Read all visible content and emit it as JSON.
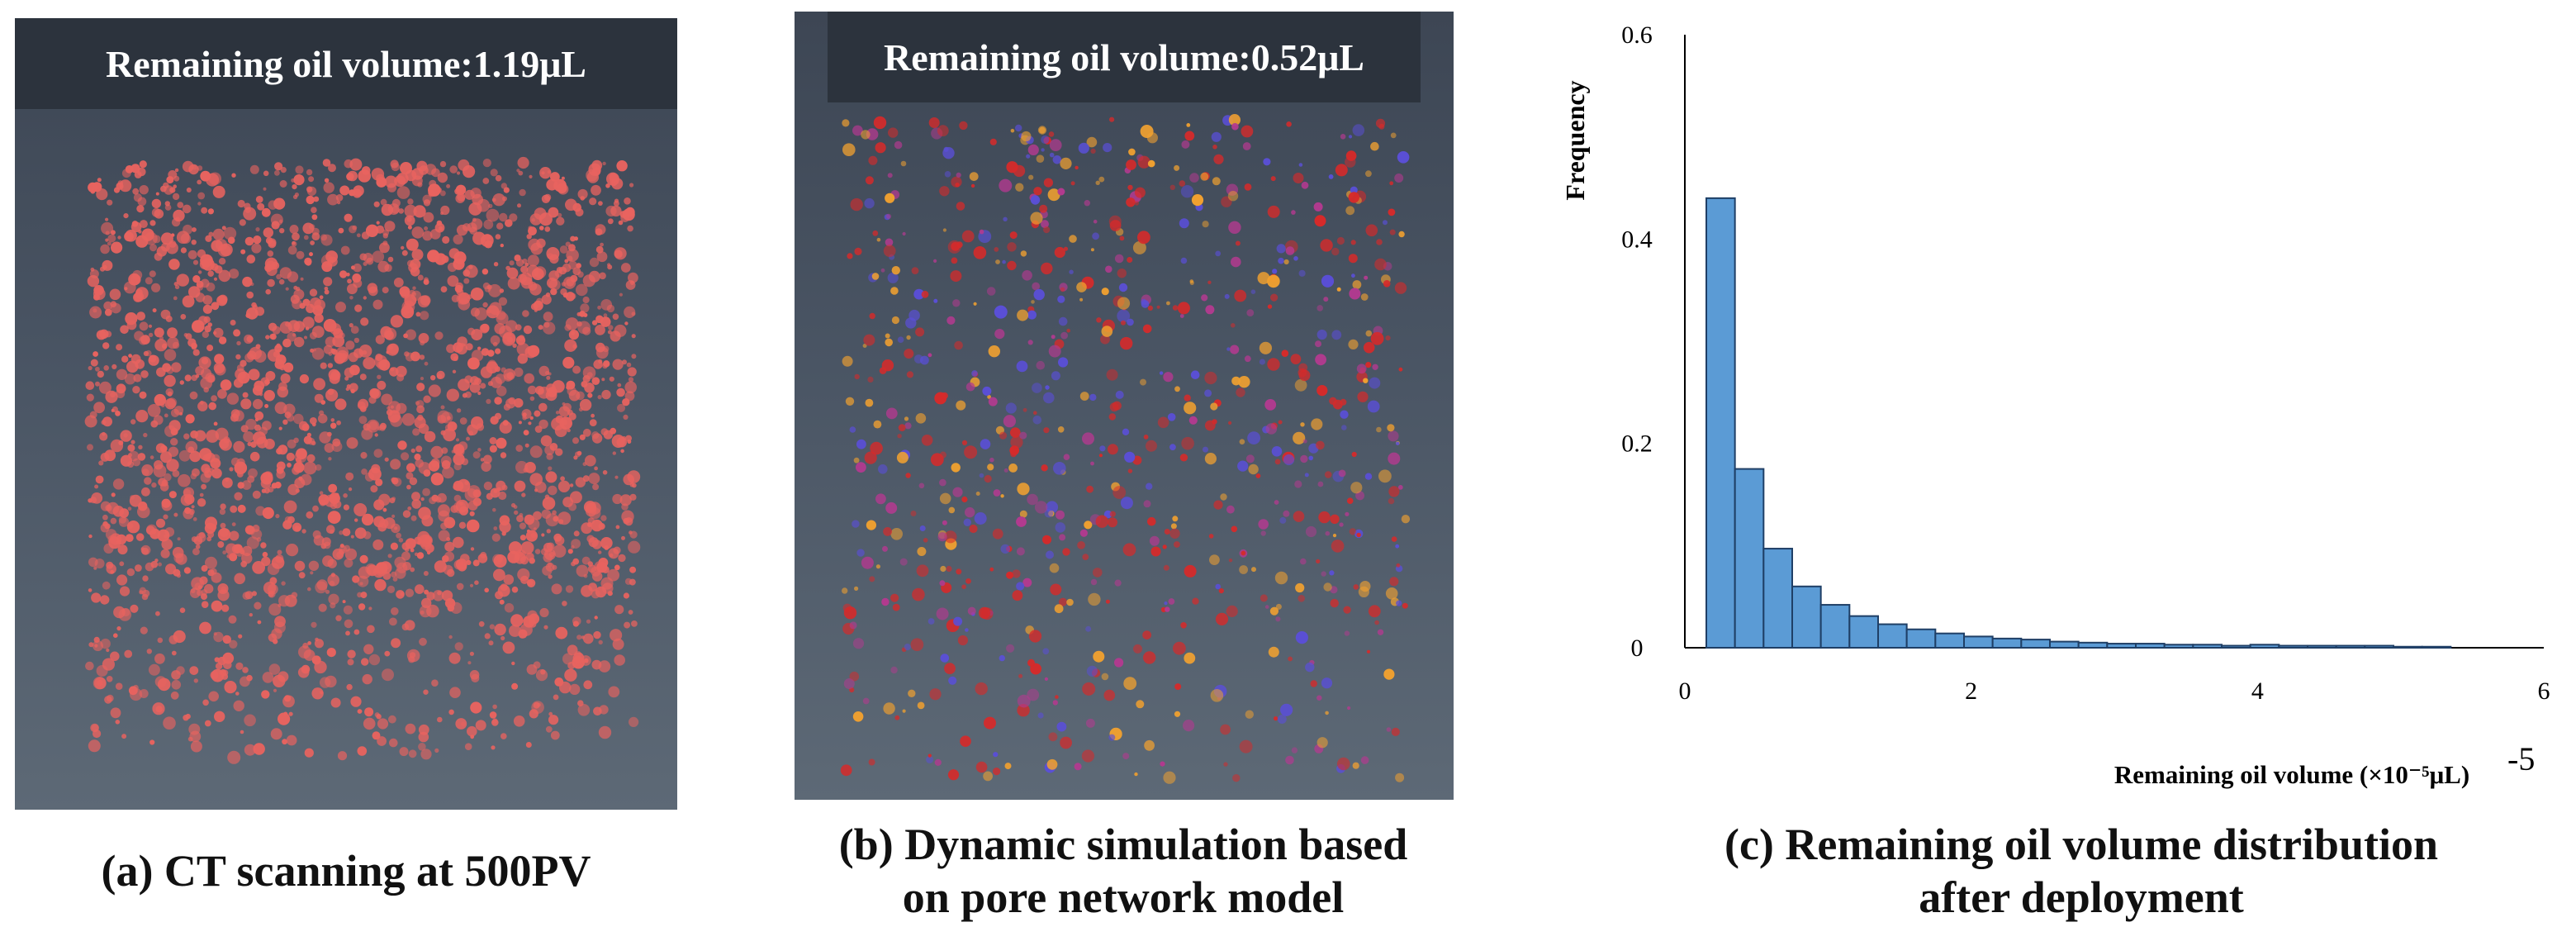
{
  "panel_a": {
    "header": "Remaining oil volume:1.19μL",
    "caption": "(a) CT scanning at 500PV",
    "image_desc": "ct-scan-oil-render"
  },
  "panel_b": {
    "header": "Remaining oil volume:0.52μL",
    "caption_line1": "(b) Dynamic simulation based",
    "caption_line2": "on pore network model",
    "image_desc": "pore-network-simulation-render"
  },
  "panel_c": {
    "caption_line1": "(c) Remaining oil volume distribution",
    "caption_line2": "after deployment"
  },
  "colors": {
    "bar_fill": "#5b9bd5",
    "bar_stroke": "#1f3f66",
    "oil_ct": "#e8635f",
    "oil_red": "#d62a2a",
    "oil_orange": "#f0a030",
    "oil_blue": "#5a4fd6"
  },
  "chart_data": {
    "type": "bar",
    "title": "",
    "xlabel": "Remaining oil volume (×10⁻⁵μL)",
    "exponent_label": "-5",
    "ylabel": "Frequency",
    "xlim": [
      0,
      6
    ],
    "ylim": [
      0,
      0.6
    ],
    "x_ticks": [
      "0",
      "2",
      "4",
      "6"
    ],
    "y_ticks": [
      "0",
      "0.2",
      "0.4",
      "0.6"
    ],
    "bin_width": 0.2,
    "bin_starts": [
      0.15,
      0.35,
      0.55,
      0.75,
      0.95,
      1.15,
      1.35,
      1.55,
      1.75,
      1.95,
      2.15,
      2.35,
      2.55,
      2.75,
      2.95,
      3.15,
      3.35,
      3.55,
      3.75,
      3.95,
      4.15,
      4.35,
      4.55,
      4.75,
      4.95,
      5.15
    ],
    "values": [
      0.44,
      0.175,
      0.097,
      0.06,
      0.042,
      0.031,
      0.023,
      0.018,
      0.014,
      0.011,
      0.009,
      0.008,
      0.006,
      0.005,
      0.004,
      0.004,
      0.003,
      0.003,
      0.002,
      0.003,
      0.002,
      0.002,
      0.002,
      0.002,
      0.001,
      0.001
    ],
    "grid": false,
    "legend": "none"
  }
}
